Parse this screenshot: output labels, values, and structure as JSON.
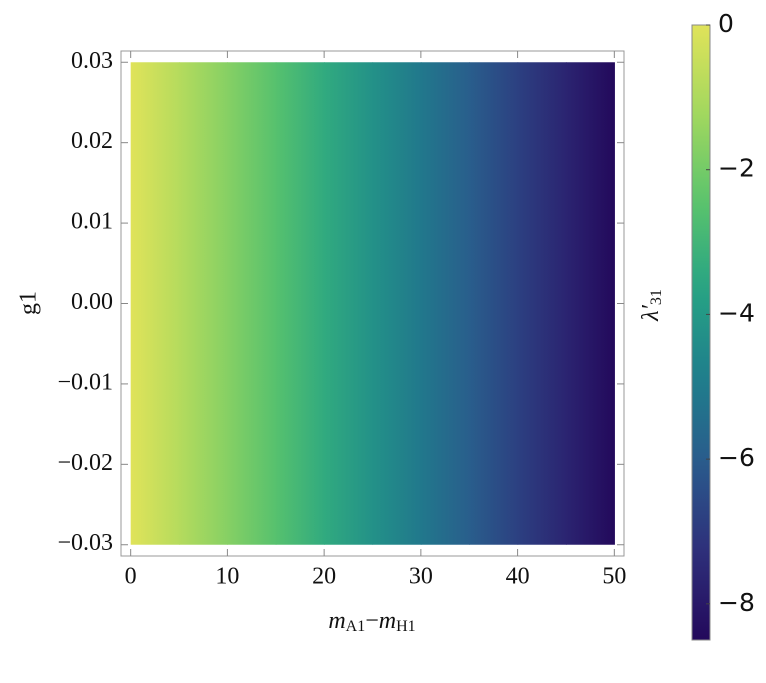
{
  "chart_data": {
    "type": "heatmap",
    "xlabel": [
      "m",
      "A1",
      "−",
      "m",
      "H1"
    ],
    "ylabel": "g1",
    "x": [
      0,
      5,
      10,
      15,
      20,
      25,
      30,
      35,
      40,
      45,
      50
    ],
    "y": [
      -0.03,
      0.03
    ],
    "values": [
      0,
      -0.85,
      -1.7,
      -2.55,
      -3.4,
      -4.25,
      -5.1,
      -5.95,
      -6.8,
      -7.65,
      -8.5
    ],
    "xlim": [
      -1,
      51
    ],
    "xticks": [
      0,
      10,
      20,
      30,
      40,
      50
    ],
    "ylim": [
      -0.0314,
      0.0314
    ],
    "yticks": [
      {
        "value": -0.03,
        "label": "−0.03"
      },
      {
        "value": -0.02,
        "label": "−0.02"
      },
      {
        "value": -0.01,
        "label": "−0.01"
      },
      {
        "value": 0,
        "label": "0.00"
      },
      0.01,
      0.02,
      0.03
    ],
    "colormap": "viridis",
    "colorbar": {
      "label": [
        "λ′",
        "31"
      ],
      "lim": [
        -8.5,
        0
      ],
      "ticks": [
        {
          "value": -8,
          "label": "−8"
        },
        {
          "value": -6,
          "label": "−6"
        },
        {
          "value": -4,
          "label": "−4"
        },
        {
          "value": -2,
          "label": "−2"
        },
        0
      ]
    }
  }
}
